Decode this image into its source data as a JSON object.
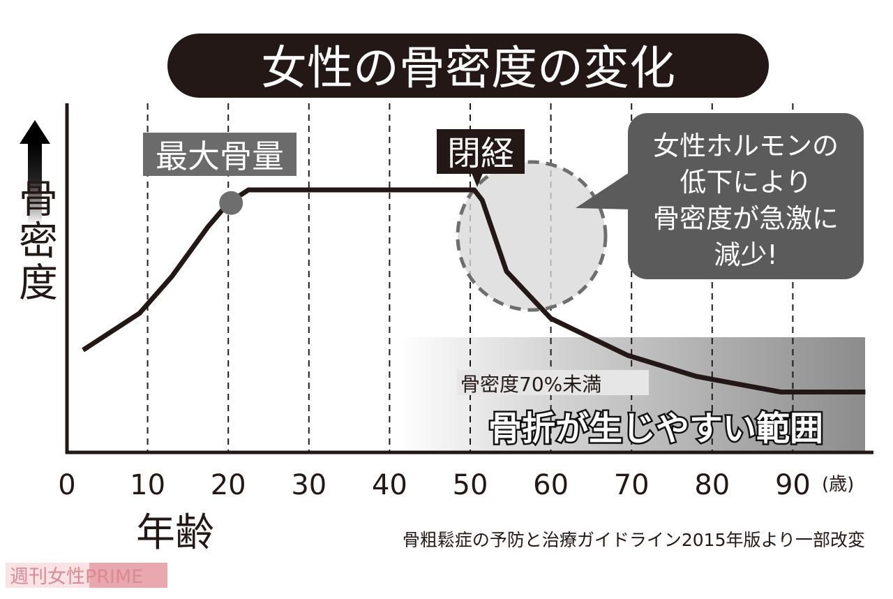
{
  "chart_data": {
    "type": "line",
    "title": "女性の骨密度の変化",
    "xlabel": "年齢",
    "ylabel": "骨密度",
    "x_unit": "(歳)",
    "xlim": [
      0,
      99
    ],
    "x_ticks": [
      0,
      10,
      20,
      30,
      40,
      50,
      60,
      70,
      80,
      90
    ],
    "y_scale_printed": false,
    "grid": "vertical dashed",
    "series": [
      {
        "x": [
          2,
          9,
          13,
          17.5,
          20,
          22.5,
          30,
          40,
          50.5,
          51.5,
          54.5,
          60,
          69.5,
          78,
          88.5,
          99
        ],
        "y": [
          39,
          53,
          67,
          86,
          95,
          100,
          100,
          100,
          100,
          96,
          69,
          51,
          37,
          29,
          23,
          23
        ]
      }
    ],
    "peak_marker": {
      "x": 20,
      "label": "最大骨量"
    },
    "menopause_marker": {
      "x": 50.5,
      "label": "閉経"
    },
    "callout": [
      "女性ホルモンの",
      "低下により",
      "骨密度が急激に",
      "減少!"
    ],
    "fracture_zone": {
      "x_start": 41,
      "sub_label": "骨密度70%未満",
      "label": "骨折が生じやすい範囲"
    },
    "source": "骨粗鬆症の予防と治療ガイドライン2015年版より一部改変"
  },
  "watermark": "週刊女性PRIME",
  "colors": {
    "curve": "#231815",
    "band": "#8c8c8c",
    "callout": "#5b5b5b",
    "peak_label_bg": "#6b6b6b",
    "watermark": "#e8a8ad"
  }
}
